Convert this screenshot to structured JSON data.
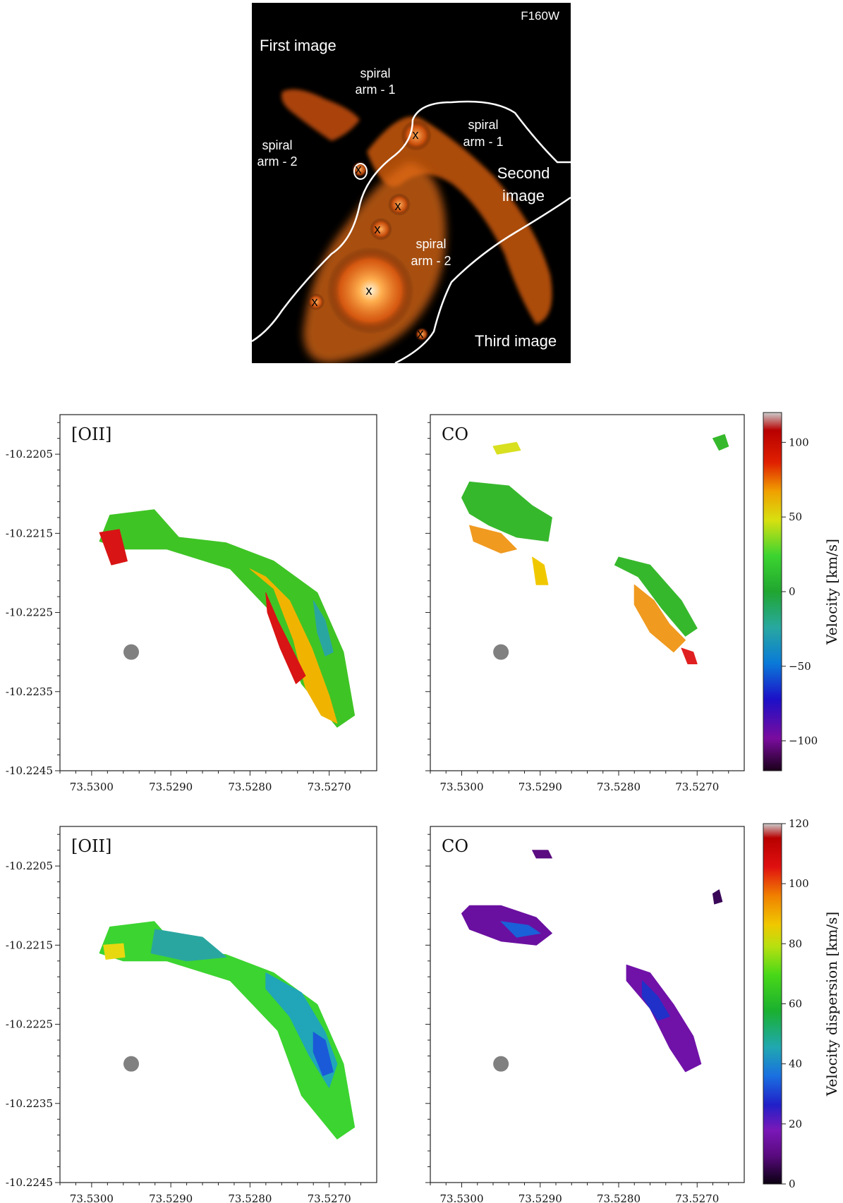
{
  "image_panel": {
    "filter": "F160W",
    "labels": {
      "first_image": "First  image",
      "second_image_1": "Second",
      "second_image_2": "image",
      "third_image": "Third image",
      "arm1_a_1": "spiral",
      "arm1_a_2": "arm - 1",
      "arm1_b_1": "spiral",
      "arm1_b_2": "arm - 1",
      "arm2_a_1": "spiral",
      "arm2_a_2": "arm - 2",
      "arm2_b_1": "spiral",
      "arm2_b_2": "arm - 2",
      "marker": "x"
    },
    "colors": {
      "background": "#000000",
      "galaxy": "#ff7a1a",
      "core": "#fff4d8",
      "critical_curve": "#ffffff"
    }
  },
  "chart_data": [
    {
      "type": "heatmap",
      "title": "[OII]",
      "quantity": "velocity",
      "xticks": [
        "73.5300",
        "73.5290",
        "73.5280",
        "73.5270"
      ],
      "yticks": [
        "-10.2205",
        "-10.2215",
        "-10.2225",
        "-10.2235",
        "-10.2245"
      ],
      "xlim": [
        73.5304,
        73.5264
      ],
      "ylim": [
        -10.2245,
        -10.22
      ],
      "beam": {
        "ra": 73.5295,
        "dec": -10.223
      },
      "regions": [
        {
          "color": "#3fc425",
          "points": [
            [
              73.52977,
              -10.22127
            ],
            [
              73.52921,
              -10.2212
            ],
            [
              73.5289,
              -10.22155
            ],
            [
              73.5283,
              -10.22162
            ],
            [
              73.5277,
              -10.22185
            ],
            [
              73.52715,
              -10.22225
            ],
            [
              73.52682,
              -10.223
            ],
            [
              73.52668,
              -10.2238
            ],
            [
              73.5269,
              -10.22395
            ],
            [
              73.52735,
              -10.2234
            ],
            [
              73.52765,
              -10.22258
            ],
            [
              73.52825,
              -10.22195
            ],
            [
              73.52905,
              -10.2217
            ],
            [
              73.5296,
              -10.2217
            ],
            [
              73.5299,
              -10.2216
            ]
          ]
        },
        {
          "color": "#d81414",
          "points": [
            [
              73.5299,
              -10.22149
            ],
            [
              73.52965,
              -10.22145
            ],
            [
              73.52955,
              -10.22185
            ],
            [
              73.52975,
              -10.2219
            ]
          ]
        },
        {
          "color": "#f0b400",
          "points": [
            [
              73.528,
              -10.22195
            ],
            [
              73.5277,
              -10.2222
            ],
            [
              73.52745,
              -10.22285
            ],
            [
              73.5273,
              -10.22345
            ],
            [
              73.5271,
              -10.2238
            ],
            [
              73.5269,
              -10.2239
            ],
            [
              73.527,
              -10.22355
            ],
            [
              73.52722,
              -10.22295
            ],
            [
              73.5275,
              -10.22235
            ],
            [
              73.5278,
              -10.22205
            ]
          ]
        },
        {
          "color": "#d81414",
          "points": [
            [
              73.5278,
              -10.22225
            ],
            [
              73.52765,
              -10.2226
            ],
            [
              73.52745,
              -10.223
            ],
            [
              73.5273,
              -10.2233
            ],
            [
              73.52742,
              -10.2234
            ],
            [
              73.52762,
              -10.22295
            ],
            [
              73.52778,
              -10.2225
            ]
          ]
        },
        {
          "color": "#2aa6a0",
          "points": [
            [
              73.5272,
              -10.22235
            ],
            [
              73.52705,
              -10.2226
            ],
            [
              73.52695,
              -10.223
            ],
            [
              73.52705,
              -10.22305
            ],
            [
              73.52715,
              -10.22275
            ]
          ]
        }
      ],
      "cbar": null
    },
    {
      "type": "heatmap",
      "title": "CO",
      "quantity": "velocity",
      "xticks": [
        "73.5300",
        "73.5290",
        "73.5280",
        "73.5270"
      ],
      "yticks": [],
      "xlim": [
        73.5304,
        73.5264
      ],
      "ylim": [
        -10.2245,
        -10.22
      ],
      "beam": {
        "ra": 73.5295,
        "dec": -10.223
      },
      "regions": [
        {
          "color": "#36b82c",
          "points": [
            [
              73.5299,
              -10.22085
            ],
            [
              73.5294,
              -10.2209
            ],
            [
              73.5291,
              -10.22115
            ],
            [
              73.52885,
              -10.2213
            ],
            [
              73.5289,
              -10.2216
            ],
            [
              73.5293,
              -10.22155
            ],
            [
              73.52965,
              -10.2214
            ],
            [
              73.5299,
              -10.22125
            ],
            [
              73.53,
              -10.22105
            ]
          ]
        },
        {
          "color": "#f09a20",
          "points": [
            [
              73.5299,
              -10.2214
            ],
            [
              73.5295,
              -10.2215
            ],
            [
              73.5293,
              -10.2217
            ],
            [
              73.5295,
              -10.22175
            ],
            [
              73.52985,
              -10.2216
            ]
          ]
        },
        {
          "color": "#36b82c",
          "points": [
            [
              73.528,
              -10.2218
            ],
            [
              73.5276,
              -10.2219
            ],
            [
              73.5272,
              -10.22235
            ],
            [
              73.527,
              -10.2227
            ],
            [
              73.52715,
              -10.2228
            ],
            [
              73.52745,
              -10.22245
            ],
            [
              73.52775,
              -10.22205
            ],
            [
              73.52805,
              -10.2219
            ]
          ]
        },
        {
          "color": "#f09a20",
          "points": [
            [
              73.5278,
              -10.22215
            ],
            [
              73.52755,
              -10.22235
            ],
            [
              73.52735,
              -10.22265
            ],
            [
              73.52715,
              -10.22285
            ],
            [
              73.5273,
              -10.223
            ],
            [
              73.5276,
              -10.22275
            ],
            [
              73.5278,
              -10.2224
            ]
          ]
        },
        {
          "color": "#e02020",
          "points": [
            [
              73.5272,
              -10.22295
            ],
            [
              73.52705,
              -10.223
            ],
            [
              73.527,
              -10.22315
            ],
            [
              73.52712,
              -10.22315
            ]
          ]
        },
        {
          "color": "#f0c800",
          "points": [
            [
              73.5291,
              -10.2218
            ],
            [
              73.52895,
              -10.2219
            ],
            [
              73.5289,
              -10.22215
            ],
            [
              73.52905,
              -10.22215
            ]
          ]
        },
        {
          "color": "#d8e020",
          "points": [
            [
              73.5296,
              -10.2204
            ],
            [
              73.5293,
              -10.22035
            ],
            [
              73.52925,
              -10.22045
            ],
            [
              73.52955,
              -10.2205
            ]
          ]
        },
        {
          "color": "#36b82c",
          "points": [
            [
              73.5268,
              -10.2203
            ],
            [
              73.52665,
              -10.22025
            ],
            [
              73.5266,
              -10.2204
            ],
            [
              73.52672,
              -10.22045
            ]
          ]
        }
      ],
      "cbar": {
        "label": "Velocity [km/s]",
        "min": -120,
        "max": 120,
        "ticks": [
          "100",
          "50",
          "0",
          "−50",
          "−100"
        ],
        "tick_values": [
          100,
          50,
          0,
          -50,
          -100
        ],
        "colors": [
          "#1a0019",
          "#7a0c9e",
          "#1c10c8",
          "#0a7ad8",
          "#28a8a0",
          "#20a630",
          "#3cd430",
          "#d8e010",
          "#f0a000",
          "#e02000",
          "#b80000",
          "#cccccc"
        ]
      }
    },
    {
      "type": "heatmap",
      "title": "[OII]",
      "quantity": "velocity dispersion",
      "xticks": [
        "73.5300",
        "73.5290",
        "73.5280",
        "73.5270"
      ],
      "yticks": [
        "-10.2205",
        "-10.2215",
        "-10.2225",
        "-10.2235",
        "-10.2245"
      ],
      "xlim": [
        73.5304,
        73.5264
      ],
      "ylim": [
        -10.2245,
        -10.22
      ],
      "beam": {
        "ra": 73.5295,
        "dec": -10.223
      },
      "regions": [
        {
          "color": "#3cd430",
          "points": [
            [
              73.52977,
              -10.22127
            ],
            [
              73.52921,
              -10.2212
            ],
            [
              73.5289,
              -10.22155
            ],
            [
              73.5283,
              -10.22162
            ],
            [
              73.5277,
              -10.22185
            ],
            [
              73.52715,
              -10.22225
            ],
            [
              73.52682,
              -10.223
            ],
            [
              73.52668,
              -10.2238
            ],
            [
              73.5269,
              -10.22395
            ],
            [
              73.52735,
              -10.2234
            ],
            [
              73.52765,
              -10.22258
            ],
            [
              73.52825,
              -10.22195
            ],
            [
              73.52905,
              -10.2217
            ],
            [
              73.5296,
              -10.2217
            ],
            [
              73.5299,
              -10.2216
            ]
          ]
        },
        {
          "color": "#20a6b8",
          "points": [
            [
              73.5278,
              -10.22185
            ],
            [
              73.52735,
              -10.2221
            ],
            [
              73.52705,
              -10.2226
            ],
            [
              73.5269,
              -10.223
            ],
            [
              73.527,
              -10.2233
            ],
            [
              73.52725,
              -10.2229
            ],
            [
              73.5275,
              -10.2224
            ],
            [
              73.5278,
              -10.22205
            ]
          ]
        },
        {
          "color": "#1a5ad8",
          "points": [
            [
              73.5272,
              -10.2226
            ],
            [
              73.52705,
              -10.2227
            ],
            [
              73.52695,
              -10.2231
            ],
            [
              73.52708,
              -10.22315
            ],
            [
              73.5272,
              -10.22285
            ]
          ]
        },
        {
          "color": "#2aa6a0",
          "points": [
            [
              73.5292,
              -10.2213
            ],
            [
              73.5286,
              -10.2214
            ],
            [
              73.5283,
              -10.22165
            ],
            [
              73.5288,
              -10.2217
            ],
            [
              73.52925,
              -10.2216
            ]
          ]
        },
        {
          "color": "#e8d810",
          "points": [
            [
              73.52985,
              -10.2215
            ],
            [
              73.5296,
              -10.22148
            ],
            [
              73.52958,
              -10.22165
            ],
            [
              73.52982,
              -10.22168
            ]
          ]
        }
      ],
      "cbar": null
    },
    {
      "type": "heatmap",
      "title": "CO",
      "quantity": "velocity dispersion",
      "xticks": [
        "73.5300",
        "73.5290",
        "73.5280",
        "73.5270"
      ],
      "yticks": [],
      "xlim": [
        73.5304,
        73.5264
      ],
      "ylim": [
        -10.2245,
        -10.22
      ],
      "beam": {
        "ra": 73.5295,
        "dec": -10.223
      },
      "regions": [
        {
          "color": "#6a10a0",
          "points": [
            [
              73.5299,
              -10.221
            ],
            [
              73.5295,
              -10.221
            ],
            [
              73.52905,
              -10.22115
            ],
            [
              73.52885,
              -10.22135
            ],
            [
              73.52905,
              -10.2215
            ],
            [
              73.5295,
              -10.22145
            ],
            [
              73.5299,
              -10.2213
            ],
            [
              73.53,
              -10.2211
            ]
          ]
        },
        {
          "color": "#1a60d8",
          "points": [
            [
              73.5295,
              -10.2212
            ],
            [
              73.52915,
              -10.22125
            ],
            [
              73.529,
              -10.22135
            ],
            [
              73.5293,
              -10.2214
            ]
          ]
        },
        {
          "color": "#7012a8",
          "points": [
            [
              73.5279,
              -10.22175
            ],
            [
              73.5276,
              -10.22185
            ],
            [
              73.5273,
              -10.22225
            ],
            [
              73.52705,
              -10.22265
            ],
            [
              73.52695,
              -10.223
            ],
            [
              73.52715,
              -10.2231
            ],
            [
              73.52735,
              -10.2228
            ],
            [
              73.5276,
              -10.2223
            ],
            [
              73.5279,
              -10.22195
            ]
          ]
        },
        {
          "color": "#2030c8",
          "points": [
            [
              73.5277,
              -10.22195
            ],
            [
              73.5275,
              -10.22215
            ],
            [
              73.52735,
              -10.2224
            ],
            [
              73.5275,
              -10.22245
            ],
            [
              73.5277,
              -10.22215
            ]
          ]
        },
        {
          "color": "#5a0c80",
          "points": [
            [
              73.5291,
              -10.2203
            ],
            [
              73.5289,
              -10.2203
            ],
            [
              73.52885,
              -10.2204
            ],
            [
              73.52905,
              -10.2204
            ]
          ]
        },
        {
          "color": "#3a0858",
          "points": [
            [
              73.5268,
              -10.22085
            ],
            [
              73.52672,
              -10.2208
            ],
            [
              73.52668,
              -10.22095
            ],
            [
              73.52678,
              -10.22098
            ]
          ]
        }
      ],
      "cbar": {
        "label": "Velocity dispersion [km/s]",
        "min": 0,
        "max": 120,
        "ticks": [
          "120",
          "100",
          "80",
          "60",
          "40",
          "20",
          "0"
        ],
        "tick_values": [
          120,
          100,
          80,
          60,
          40,
          20,
          0
        ],
        "colors": [
          "#0a0010",
          "#5a0a80",
          "#7a18b8",
          "#2020c8",
          "#1a70e0",
          "#20a8b0",
          "#1ab030",
          "#48d818",
          "#b8e010",
          "#f0c800",
          "#f08000",
          "#e01010",
          "#b80000",
          "#cccccc"
        ]
      }
    }
  ]
}
